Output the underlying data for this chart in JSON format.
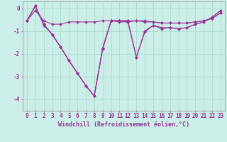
{
  "x": [
    0,
    1,
    2,
    3,
    4,
    5,
    6,
    7,
    8,
    9,
    10,
    11,
    12,
    13,
    14,
    15,
    16,
    17,
    18,
    19,
    20,
    21,
    22,
    23
  ],
  "line1": [
    -0.55,
    -0.1,
    -0.55,
    -0.7,
    -0.7,
    -0.6,
    -0.6,
    -0.6,
    -0.6,
    -0.55,
    -0.55,
    -0.55,
    -0.55,
    -0.55,
    -0.6,
    -0.6,
    -0.65,
    -0.65,
    -0.65,
    -0.65,
    -0.6,
    -0.55,
    -0.45,
    -0.2
  ],
  "line2": [
    -0.55,
    0.1,
    -0.7,
    -1.15,
    -1.7,
    -2.3,
    -2.85,
    -3.4,
    -3.85,
    -1.8,
    -0.55,
    -0.55,
    -0.55,
    -2.15,
    -1.05,
    -0.75,
    -0.9,
    -0.85,
    -0.9,
    -0.85,
    -0.7,
    -0.6,
    -0.4,
    -0.1
  ],
  "line3": [
    -0.55,
    0.1,
    -0.7,
    -1.15,
    -1.7,
    -2.3,
    -2.85,
    -3.4,
    -3.85,
    -1.75,
    -0.55,
    -0.6,
    -0.6,
    -0.55,
    -0.55,
    -0.6,
    -0.65,
    -0.65,
    -0.65,
    -0.65,
    -0.6,
    -0.55,
    -0.45,
    -0.2
  ],
  "line4": [
    -0.55,
    0.1,
    -0.75,
    -1.15,
    -1.7,
    -2.3,
    -2.85,
    -3.4,
    -3.85,
    -1.75,
    -0.55,
    -0.55,
    -0.6,
    -2.15,
    -1.0,
    -0.75,
    -0.85,
    -0.85,
    -0.9,
    -0.85,
    -0.7,
    -0.6,
    -0.4,
    -0.1
  ],
  "bg_color": "#cceee8",
  "grid_color": "#aaddcc",
  "line_color": "#993399",
  "marker": "D",
  "markersize": 2.0,
  "linewidth": 0.8,
  "xlabel": "Windchill (Refroidissement éolien,°C)",
  "ylabel": "",
  "xlim": [
    -0.5,
    23.5
  ],
  "ylim": [
    -4.5,
    0.3
  ],
  "yticks": [
    0,
    -1,
    -2,
    -3,
    -4
  ],
  "xticks": [
    0,
    1,
    2,
    3,
    4,
    5,
    6,
    7,
    8,
    9,
    10,
    11,
    12,
    13,
    14,
    15,
    16,
    17,
    18,
    19,
    20,
    21,
    22,
    23
  ],
  "xlabel_fontsize": 6.0,
  "tick_fontsize": 5.5
}
